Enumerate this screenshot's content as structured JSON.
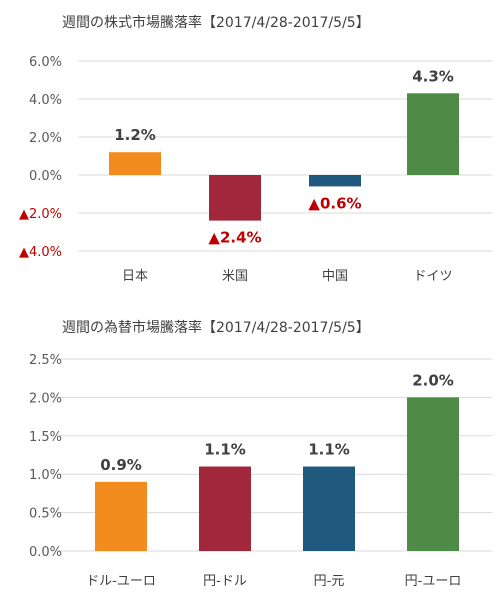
{
  "chart_data": [
    {
      "type": "bar",
      "title": "週間の株式市場騰落率【2017/4/28-2017/5/5】",
      "categories": [
        "日本",
        "米国",
        "中国",
        "ドイツ"
      ],
      "values": [
        1.2,
        -2.4,
        -0.6,
        4.3
      ],
      "data_labels": [
        "1.2%",
        "▲2.4%",
        "▲0.6%",
        "4.3%"
      ],
      "colors": [
        "#f28c1e",
        "#a0283a",
        "#1f5a7e",
        "#4d8b46"
      ],
      "negative_color": "#c00000",
      "yticks": [
        6.0,
        4.0,
        2.0,
        0.0,
        -2.0,
        -4.0
      ],
      "ytick_labels": [
        "6.0%",
        "4.0%",
        "2.0%",
        "0.0%",
        "▲2.0%",
        "▲4.0%"
      ],
      "ylim": [
        -4.0,
        6.0
      ],
      "grid": true,
      "xlabel": "",
      "ylabel": ""
    },
    {
      "type": "bar",
      "title": "週間の為替市場騰落率【2017/4/28-2017/5/5】",
      "categories": [
        "ドル-ユーロ",
        "円-ドル",
        "円-元",
        "円-ユーロ"
      ],
      "values": [
        0.9,
        1.1,
        1.1,
        2.0
      ],
      "data_labels": [
        "0.9%",
        "1.1%",
        "1.1%",
        "2.0%"
      ],
      "colors": [
        "#f28c1e",
        "#a0283a",
        "#1f5a7e",
        "#4d8b46"
      ],
      "negative_color": "#c00000",
      "yticks": [
        2.5,
        2.0,
        1.5,
        1.0,
        0.5,
        0.0
      ],
      "ytick_labels": [
        "2.5%",
        "2.0%",
        "1.5%",
        "1.0%",
        "0.5%",
        "0.0%"
      ],
      "ylim": [
        0.0,
        2.5
      ],
      "grid": true,
      "xlabel": "",
      "ylabel": ""
    }
  ]
}
